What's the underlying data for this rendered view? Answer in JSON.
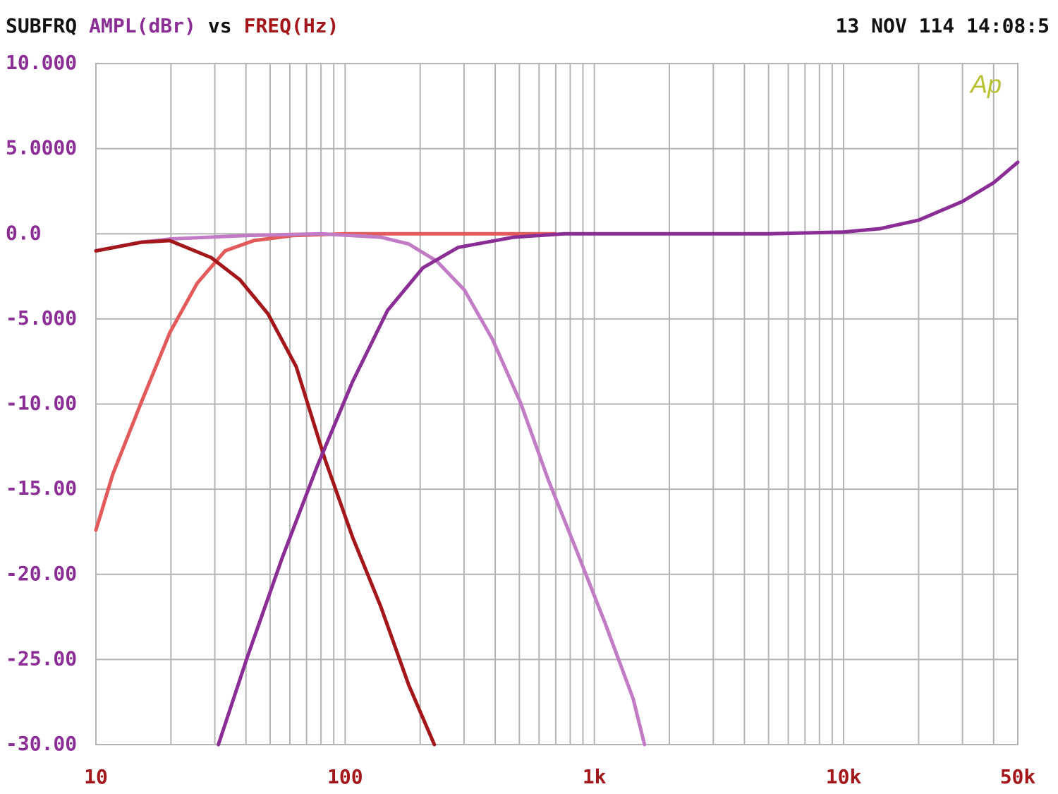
{
  "chart_data": {
    "type": "line",
    "title_parts": [
      "SUBFRQ",
      "AMPL(dBr)",
      "vs",
      "FREQ(Hz)"
    ],
    "title_colors": [
      "#111111",
      "#8a2e96",
      "#111111",
      "#a3161a"
    ],
    "timestamp": "13 NOV 114 14:08:5",
    "logo": "Ap",
    "logo_color": "#b8c230",
    "x_log": true,
    "grid": true,
    "xlim": [
      10,
      50000
    ],
    "ylim": [
      -30,
      10
    ],
    "xticks": [
      10,
      100,
      {
        "value": 1000,
        "label": "1k"
      },
      {
        "value": 10000,
        "label": "10k"
      },
      {
        "value": 50000,
        "label": "50k"
      }
    ],
    "xgrid": [
      20,
      30,
      40,
      50,
      60,
      70,
      80,
      90,
      200,
      300,
      400,
      500,
      600,
      700,
      800,
      900,
      2000,
      3000,
      4000,
      5000,
      6000,
      7000,
      8000,
      9000,
      20000,
      30000,
      40000
    ],
    "yticks": [
      {
        "value": 10,
        "label": "10.000"
      },
      {
        "value": 5,
        "label": "5.0000"
      },
      {
        "value": 0,
        "label": "0.0"
      },
      {
        "value": -5,
        "label": "-5.000"
      },
      {
        "value": -10,
        "label": "-10.00"
      },
      {
        "value": -15,
        "label": "-15.00"
      },
      {
        "value": -20,
        "label": "-20.00"
      },
      {
        "value": -25,
        "label": "-25.00"
      },
      {
        "value": -30,
        "label": "-30.00"
      }
    ],
    "ytick_color": "#8a2e96",
    "xtick_color": "#a3161a",
    "series": [
      {
        "color": "#e35a5a",
        "x": [
          10,
          11.7,
          15.2,
          19.8,
          25.5,
          33,
          43,
          62,
          100,
          200,
          400,
          700
        ],
        "values": [
          -17.4,
          -14.1,
          -9.9,
          -5.8,
          -2.9,
          -1.0,
          -0.4,
          -0.1,
          0,
          0,
          0,
          0
        ]
      },
      {
        "color": "#c27cc6",
        "x": [
          10,
          15,
          20,
          40,
          80,
          139,
          180,
          233,
          301,
          390,
          505,
          655,
          848,
          1100,
          1430,
          1590
        ],
        "values": [
          -1.0,
          -0.5,
          -0.3,
          -0.1,
          0,
          -0.2,
          -0.6,
          -1.6,
          -3.3,
          -6.2,
          -9.9,
          -14.5,
          -18.6,
          -22.8,
          -27.3,
          -30
        ]
      },
      {
        "color": "#a3161a",
        "x": [
          10,
          15.2,
          19.8,
          29,
          37.8,
          49,
          63.6,
          82.8,
          107,
          139,
          180,
          228
        ],
        "values": [
          -1.0,
          -0.5,
          -0.4,
          -1.4,
          -2.7,
          -4.7,
          -7.8,
          -13.2,
          -17.8,
          -21.9,
          -26.5,
          -30
        ]
      },
      {
        "color": "#8a2e96",
        "x": [
          31,
          40.4,
          56,
          77.5,
          107,
          148,
          205,
          284,
          475,
          755,
          5000,
          10000,
          14000,
          20000,
          30000,
          40000,
          50000
        ],
        "values": [
          -30,
          -24.9,
          -19.0,
          -13.6,
          -8.7,
          -4.5,
          -2.0,
          -0.8,
          -0.2,
          0,
          0,
          0.1,
          0.3,
          0.8,
          1.9,
          3.0,
          4.2
        ]
      }
    ]
  }
}
